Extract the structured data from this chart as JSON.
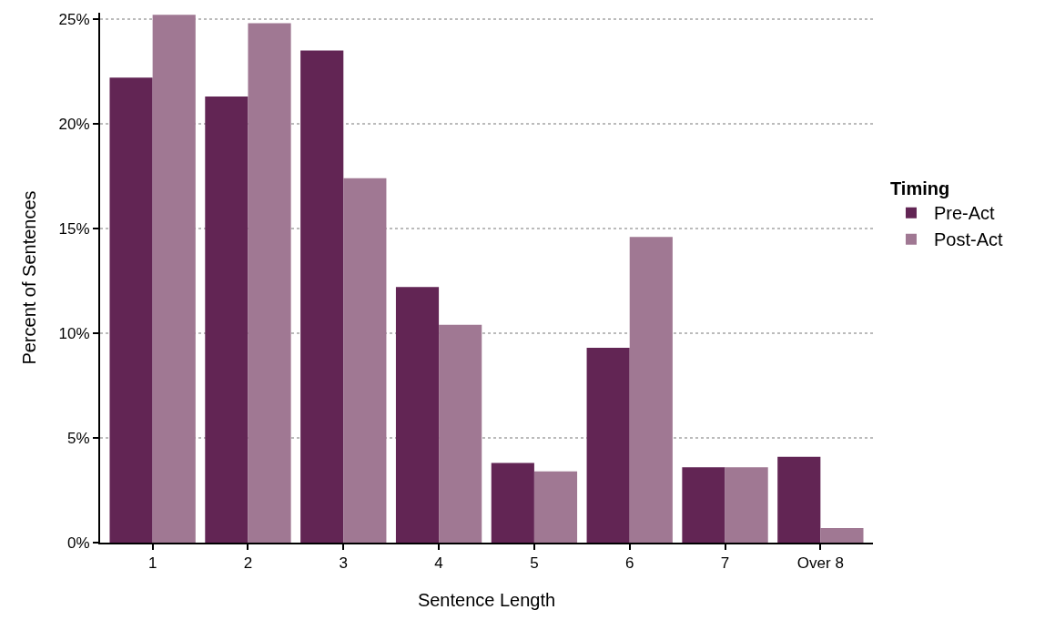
{
  "chart_data": {
    "type": "bar",
    "xlabel": "Sentence Length",
    "ylabel": "Percent of Sentences",
    "legend_title": "Timing",
    "categories": [
      "1",
      "2",
      "3",
      "4",
      "5",
      "6",
      "7",
      "Over 8"
    ],
    "series": [
      {
        "name": "Pre-Act",
        "color": "#622554",
        "values": [
          22.2,
          21.3,
          23.5,
          12.2,
          3.8,
          9.3,
          3.6,
          4.1
        ]
      },
      {
        "name": "Post-Act",
        "color": "#a07893",
        "values": [
          25.2,
          24.8,
          17.4,
          10.4,
          3.4,
          14.6,
          3.6,
          0.7
        ]
      }
    ],
    "ylim": [
      0,
      25.3
    ],
    "yticks": [
      {
        "value": 0,
        "label": "0%"
      },
      {
        "value": 5,
        "label": "5%"
      },
      {
        "value": 10,
        "label": "10%"
      },
      {
        "value": 15,
        "label": "15%"
      },
      {
        "value": 20,
        "label": "20%"
      },
      {
        "value": 25,
        "label": "25%"
      }
    ],
    "grid": "y",
    "legend": "right"
  }
}
